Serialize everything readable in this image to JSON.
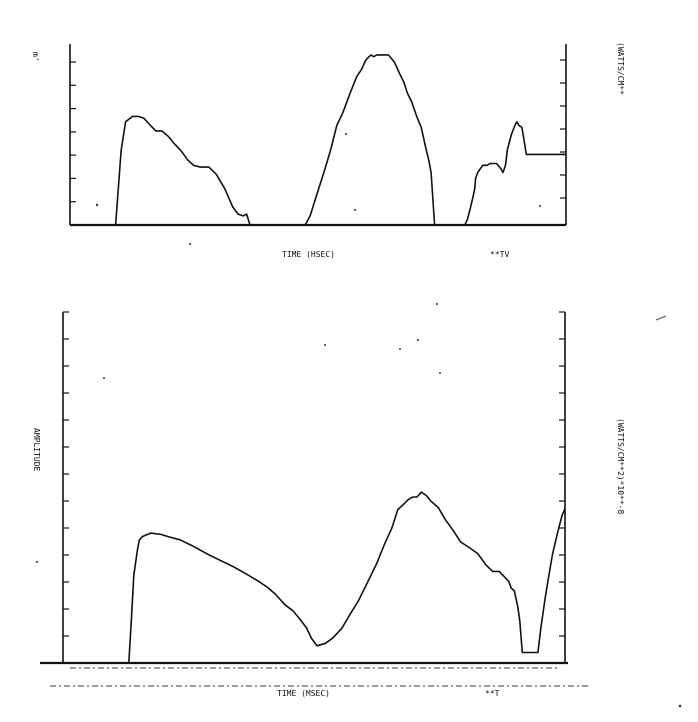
{
  "chart_data": [
    {
      "type": "line",
      "title": "",
      "xlabel": "TIME (HSEC)",
      "ylabel": "(WATTS/CM**",
      "corner_label_top_left": "m'",
      "corner_label_right": "**TV",
      "xlim": [
        0,
        100
      ],
      "ylim": [
        0,
        100
      ],
      "grid": false,
      "left_ticks": 8,
      "right_ticks": 7,
      "series": [
        {
          "x": [
            0,
            9.2,
            10.3,
            11.2,
            12.6,
            13.8,
            14.9,
            16.2,
            17.3,
            18.5,
            19.8,
            21,
            22.4,
            23.7,
            24.9,
            26.3,
            28,
            29.5,
            31.2,
            32.8,
            33.9,
            34.9,
            35.6,
            36.3,
            47.4,
            48.4,
            49.9,
            51.3,
            52.6,
            53.8,
            55,
            56.5,
            57.8,
            58.8,
            59.6,
            60.3,
            60.7,
            61.2,
            61.9,
            62.4,
            63.3,
            64.2,
            65.4,
            66.4,
            67.3,
            68,
            68.9,
            69.9,
            70.8,
            71.3,
            71.7,
            72.4,
            72.8,
            73.5,
            79.6,
            80.1,
            80.6,
            81.2,
            81.6,
            81.8,
            82.2,
            82.7,
            83.2,
            84.1,
            84.7,
            86,
            86.9,
            87.3,
            87.8,
            88.2,
            89,
            89.7,
            90.1,
            90.5,
            91.1,
            91.6,
            92,
            100
          ],
          "y": [
            0,
            0,
            41,
            57,
            60,
            60,
            59,
            55,
            52,
            52,
            49,
            45,
            41,
            36,
            33,
            32,
            32,
            28,
            20,
            10,
            6,
            5,
            6,
            0,
            0,
            5,
            18,
            30,
            42,
            55,
            62,
            73,
            82,
            86,
            91,
            93,
            94,
            93,
            94,
            94,
            94,
            94,
            90,
            84,
            79,
            73,
            68,
            60,
            54,
            48,
            43,
            35,
            29,
            0,
            0,
            3,
            8,
            15,
            20,
            26,
            29,
            31,
            33,
            33,
            34,
            34,
            31,
            29,
            33,
            42,
            50,
            55,
            57,
            55,
            54,
            46,
            39,
            39
          ]
        }
      ]
    },
    {
      "type": "line",
      "title": "",
      "xlabel": "TIME (MSEC)",
      "ylabel": "AMPLITUDE",
      "right_label": "(WATTS/CM**2)*10**-8",
      "corner_label_right": "**T",
      "xlim": [
        0,
        100
      ],
      "ylim": [
        0,
        100
      ],
      "grid": false,
      "left_ticks": 13,
      "right_ticks": 13,
      "series": [
        {
          "x": [
            0,
            13.1,
            13.6,
            14.1,
            14.8,
            15.2,
            15.8,
            16.6,
            17.5,
            19.6,
            21.2,
            23.3,
            25.9,
            28.4,
            31.1,
            33.7,
            36.6,
            38.9,
            40.8,
            42.4,
            44.2,
            45.8,
            47.2,
            48.5,
            49.5,
            50.6,
            52.3,
            53.8,
            55.6,
            57.2,
            58.8,
            60.5,
            62.5,
            64,
            65.5,
            66.7,
            67.9,
            68.8,
            69.7,
            70.5,
            71.4,
            72.4,
            73.3,
            74.8,
            76.2,
            77.7,
            79.2,
            80.9,
            82.6,
            84.2,
            85.6,
            86.9,
            87.9,
            88.8,
            89.3,
            89.9,
            90.6,
            91,
            91.5,
            94.6,
            95.2,
            96,
            96.8,
            97.5,
            98.5,
            99.4,
            100
          ],
          "y": [
            0,
            0,
            12,
            25,
            32,
            35,
            36,
            36.5,
            37,
            36.6,
            35.9,
            35.1,
            33.3,
            31.3,
            29.4,
            27.6,
            25.3,
            23.3,
            21.5,
            19.5,
            16.6,
            14.9,
            12.5,
            10,
            7,
            4.9,
            5.6,
            7.2,
            10,
            13.9,
            17.6,
            22.5,
            28.4,
            33.7,
            38.4,
            43.7,
            45.3,
            46.6,
            47.3,
            47.3,
            48.7,
            47.7,
            46.1,
            44.2,
            40.8,
            37.8,
            34.5,
            32.9,
            31.2,
            28,
            26.1,
            26.1,
            24.6,
            23.2,
            21.3,
            20.6,
            16,
            12,
            3,
            3,
            10,
            18,
            25,
            31,
            37,
            42,
            44
          ]
        }
      ]
    }
  ]
}
